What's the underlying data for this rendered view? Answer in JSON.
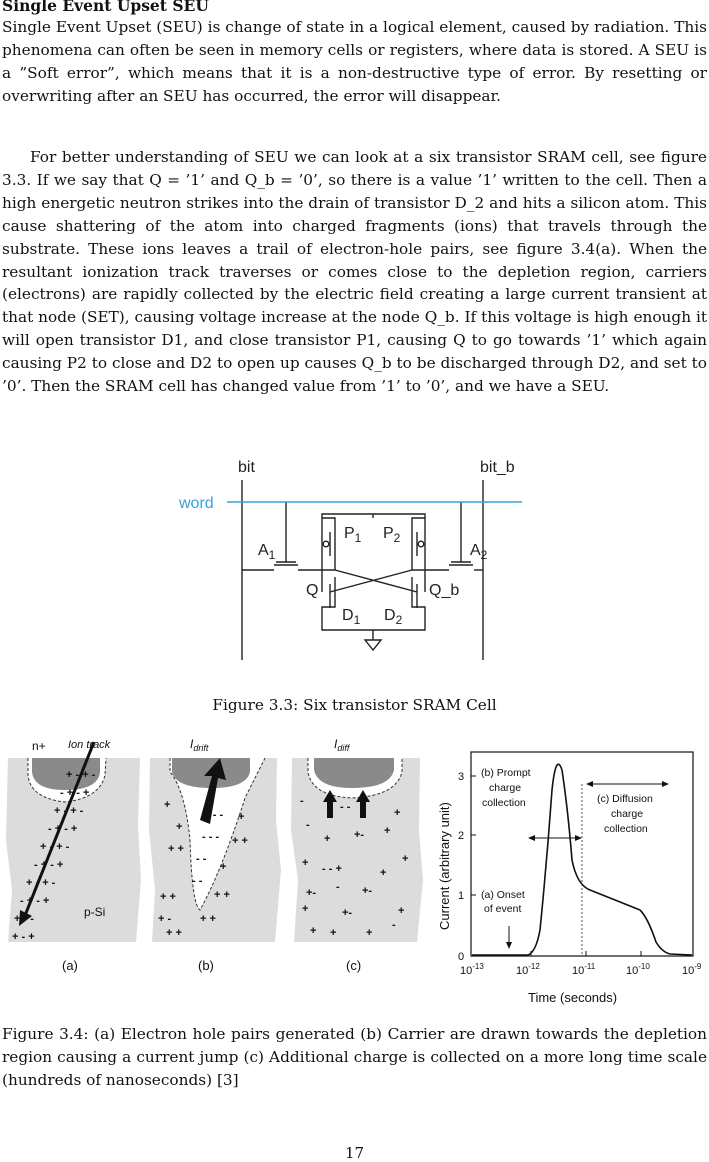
{
  "section": {
    "title": "Single Event Upset SEU",
    "intro": "Single Event Upset (SEU) is change of state in a logical element, caused by radiation. This phenomena can often be seen in memory cells or registers, where data is stored. A SEU is a ”Soft error”, which means that it is a non-destructive type of error. By resetting or overwriting after an SEU has occurred, the error will disappear.",
    "body": "For better understanding of SEU we can look at a six transistor SRAM cell, see figure 3.3. If we say that Q = ’1’ and Q_b = ’0’, so there is a value ’1’ written to the cell. Then a high energetic neutron strikes into the drain of transistor D_2 and hits a silicon atom. This cause shattering of the atom into charged fragments (ions) that travels through the substrate. These ions leaves a trail of electron-hole pairs, see figure 3.4(a). When the resultant ionization track traverses or comes close to the depletion region, carriers (electrons) are rapidly collected by the electric field creating a large current transient at that node (SET), causing voltage increase at the node Q_b. If this voltage is high enough it will open transistor D1, and close transistor P1, causing Q to go towards ’1’ which again causing P2 to close and D2 to open up causes Q_b to be discharged through D2, and set to ’0’. Then the SRAM cell has changed value from ’1’ to ’0’, and we have a SEU."
  },
  "figure33": {
    "labels": {
      "bit": "bit",
      "bit_b": "bit_b",
      "word": "word",
      "A": "A",
      "A1_sub": "1",
      "A2_sub": "2",
      "P": "P",
      "P1_sub": "1",
      "P2_sub": "2",
      "D": "D",
      "D1_sub": "1",
      "D2_sub": "2",
      "Q": "Q",
      "Q_b": "Q_b"
    },
    "caption": "Figure 3.3: Six transistor SRAM Cell",
    "word_color": "#3aa0dc"
  },
  "figure34": {
    "panel_a": {
      "nplus": "n+",
      "ion_track": "Ion track",
      "psi": "p-Si",
      "label": "(a)"
    },
    "panel_b": {
      "I": "I",
      "sub": "drift",
      "label": "(b)"
    },
    "panel_c": {
      "I": "I",
      "sub": "diff",
      "label": "(c)"
    },
    "graph": {
      "ylabel": "Current (arbitrary unit)",
      "xlabel": "Time (seconds)",
      "yticks": [
        "0",
        "1",
        "2",
        "3"
      ],
      "xtick_base": "10",
      "xtick_exps": [
        "-13",
        "-12",
        "-11",
        "-10",
        "-9"
      ],
      "ann_b": [
        "(b) Prompt",
        "charge",
        "collection"
      ],
      "ann_c": [
        "(c) Diffusion",
        "charge",
        "collection"
      ],
      "ann_a": [
        "(a) Onset",
        "of event"
      ]
    },
    "caption": "Figure 3.4: (a) Electron hole pairs generated (b) Carrier are drawn towards the depletion region causing a current jump (c) Additional charge is collected on a more long time scale (hundreds of nanoseconds) [3]"
  },
  "page_number": "17"
}
